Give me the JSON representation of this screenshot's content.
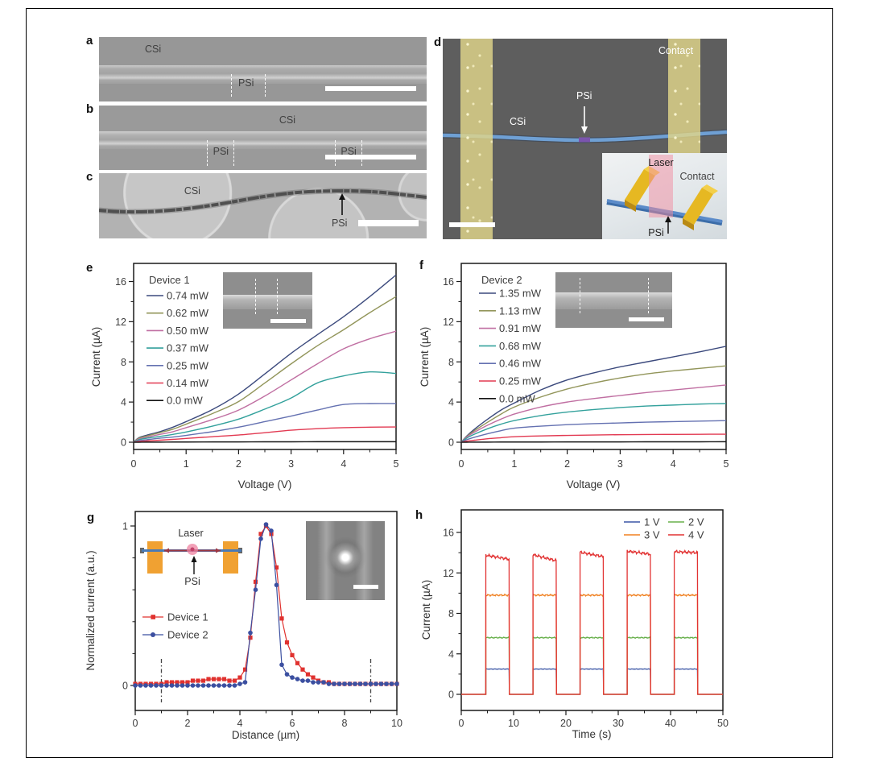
{
  "figure": {
    "panels": {
      "a": {
        "label": "a",
        "csi": "CSi",
        "psi": "PSi"
      },
      "b": {
        "label": "b",
        "csi": "CSi",
        "psi": "PSi"
      },
      "c": {
        "label": "c",
        "csi": "CSi",
        "psi": "PSi"
      },
      "d": {
        "label": "d",
        "contact": "Contact",
        "csi": "CSi",
        "psi": "PSi",
        "inset": {
          "laser": "Laser",
          "contact": "Contact",
          "psi": "PSi"
        }
      }
    },
    "colors": {
      "contact_gold": "#ded387",
      "nanowire_blue": "#6fa0d4",
      "psi_purple": "#7b54ae",
      "laser_pink": "#f294a5"
    }
  },
  "chart_data": [
    {
      "id": "e",
      "panel": "e",
      "type": "line",
      "legend_title": "Device 1",
      "xlabel": "Voltage (V)",
      "ylabel": "Current (µA)",
      "xlim": [
        0,
        5
      ],
      "ylim": [
        0,
        16
      ],
      "xticks": [
        0,
        1,
        2,
        3,
        4,
        5
      ],
      "yticks": [
        0,
        4,
        8,
        12,
        16
      ],
      "xminor": [
        0.5,
        1.5,
        2.5,
        3.5,
        4.5
      ],
      "yminor": [
        2,
        6,
        10,
        14
      ],
      "x": [
        0,
        0.1,
        0.25,
        0.5,
        0.75,
        1,
        1.5,
        2,
        2.5,
        3,
        3.5,
        4,
        4.5,
        5
      ],
      "series": [
        {
          "name": "0.74 mW",
          "color": "#3c4a7d",
          "values": [
            0,
            0.45,
            0.7,
            1.05,
            1.5,
            2.05,
            3.25,
            4.8,
            6.8,
            8.85,
            10.7,
            12.5,
            14.5,
            16.65
          ]
        },
        {
          "name": "0.62 mW",
          "color": "#92955a",
          "values": [
            0,
            0.4,
            0.62,
            0.95,
            1.3,
            1.8,
            2.85,
            4.05,
            5.9,
            7.8,
            9.6,
            11.2,
            12.9,
            14.5
          ]
        },
        {
          "name": "0.50 mW",
          "color": "#c06fa2",
          "values": [
            0,
            0.32,
            0.5,
            0.78,
            1.05,
            1.45,
            2.25,
            3.2,
            4.6,
            6.2,
            7.8,
            9.3,
            10.3,
            11.05
          ]
        },
        {
          "name": "0.37 mW",
          "color": "#33a19c",
          "values": [
            0,
            0.25,
            0.4,
            0.58,
            0.78,
            1.02,
            1.6,
            2.3,
            3.3,
            4.4,
            5.9,
            6.6,
            7.0,
            6.85
          ]
        },
        {
          "name": "0.25 mW",
          "color": "#6471b1",
          "values": [
            0,
            0.15,
            0.25,
            0.4,
            0.52,
            0.68,
            1.05,
            1.5,
            2.05,
            2.6,
            3.2,
            3.75,
            3.85,
            3.85
          ]
        },
        {
          "name": "0.14 mW",
          "color": "#e23a52",
          "values": [
            0,
            0.08,
            0.13,
            0.2,
            0.28,
            0.38,
            0.55,
            0.72,
            0.95,
            1.2,
            1.35,
            1.45,
            1.5,
            1.52
          ]
        },
        {
          "name": "0.0 mW",
          "color": "#141414",
          "values": [
            0,
            0,
            0.01,
            0.01,
            0.02,
            0.02,
            0.03,
            0.03,
            0.04,
            0.04,
            0.05,
            0.05,
            0.05,
            0.05
          ]
        }
      ]
    },
    {
      "id": "f",
      "panel": "f",
      "type": "line",
      "legend_title": "Device 2",
      "xlabel": "Voltage (V)",
      "ylabel": "Current (µA)",
      "xlim": [
        0,
        5
      ],
      "ylim": [
        0,
        16
      ],
      "xticks": [
        0,
        1,
        2,
        3,
        4,
        5
      ],
      "yticks": [
        0,
        4,
        8,
        12,
        16
      ],
      "xminor": [
        0.5,
        1.5,
        2.5,
        3.5,
        4.5
      ],
      "yminor": [
        2,
        6,
        10,
        14
      ],
      "x": [
        0,
        0.1,
        0.25,
        0.5,
        0.75,
        1,
        1.5,
        2,
        2.5,
        3,
        3.5,
        4,
        4.5,
        5
      ],
      "series": [
        {
          "name": "1.35 mW",
          "color": "#3c4a7d",
          "values": [
            0,
            0.6,
            1.3,
            2.3,
            3.2,
            3.9,
            5.2,
            6.2,
            6.9,
            7.5,
            8.0,
            8.5,
            9.0,
            9.55
          ]
        },
        {
          "name": "1.13 mW",
          "color": "#92955a",
          "values": [
            0,
            0.55,
            1.15,
            2.0,
            2.8,
            3.5,
            4.5,
            5.3,
            5.9,
            6.4,
            6.8,
            7.1,
            7.35,
            7.6
          ]
        },
        {
          "name": "0.91 mW",
          "color": "#c06fa2",
          "values": [
            0,
            0.5,
            1.0,
            1.7,
            2.3,
            2.8,
            3.5,
            4.0,
            4.35,
            4.65,
            4.95,
            5.2,
            5.45,
            5.7
          ]
        },
        {
          "name": "0.68 mW",
          "color": "#33a19c",
          "values": [
            0,
            0.4,
            0.8,
            1.35,
            1.8,
            2.15,
            2.65,
            3.0,
            3.25,
            3.45,
            3.6,
            3.7,
            3.8,
            3.85
          ]
        },
        {
          "name": "0.46 mW",
          "color": "#6471b1",
          "values": [
            0,
            0.25,
            0.5,
            0.85,
            1.15,
            1.4,
            1.6,
            1.75,
            1.85,
            1.92,
            2.0,
            2.05,
            2.1,
            2.15
          ]
        },
        {
          "name": "0.25 mW",
          "color": "#e23a52",
          "values": [
            0,
            0.1,
            0.2,
            0.35,
            0.45,
            0.55,
            0.63,
            0.68,
            0.72,
            0.75,
            0.77,
            0.78,
            0.79,
            0.8
          ]
        },
        {
          "name": "0.0 mW",
          "color": "#141414",
          "values": [
            0,
            0,
            0.01,
            0.01,
            0.02,
            0.02,
            0.02,
            0.03,
            0.03,
            0.03,
            0.04,
            0.04,
            0.04,
            0.05
          ]
        }
      ]
    },
    {
      "id": "g",
      "panel": "g",
      "type": "scatter-line",
      "xlabel": "Distance (µm)",
      "ylabel": "Normalized current (a.u.)",
      "xlim": [
        0,
        10
      ],
      "ylim": [
        0,
        1
      ],
      "xticks": [
        0,
        2,
        4,
        6,
        8,
        10
      ],
      "yticks": [
        0,
        1
      ],
      "xminor": [
        1,
        3,
        5,
        7,
        9
      ],
      "yminor": [
        0.2,
        0.4,
        0.6,
        0.8
      ],
      "marker_lines_x": [
        1,
        9
      ],
      "inset_labels": {
        "laser": "Laser",
        "psi": "PSi"
      },
      "x": [
        0,
        0.2,
        0.4,
        0.6,
        0.8,
        1,
        1.2,
        1.4,
        1.6,
        1.8,
        2,
        2.2,
        2.4,
        2.6,
        2.8,
        3,
        3.2,
        3.4,
        3.6,
        3.8,
        4,
        4.2,
        4.4,
        4.6,
        4.8,
        5,
        5.2,
        5.4,
        5.6,
        5.8,
        6,
        6.2,
        6.4,
        6.6,
        6.8,
        7,
        7.2,
        7.4,
        7.6,
        7.8,
        8,
        8.2,
        8.4,
        8.6,
        8.8,
        9,
        9.2,
        9.4,
        9.6,
        9.8,
        10
      ],
      "series": [
        {
          "name": "Device 1",
          "color": "#e0312e",
          "marker": "square",
          "values": [
            0.01,
            0.01,
            0.01,
            0.01,
            0.01,
            0.01,
            0.02,
            0.02,
            0.02,
            0.02,
            0.02,
            0.03,
            0.03,
            0.03,
            0.04,
            0.04,
            0.04,
            0.04,
            0.03,
            0.03,
            0.05,
            0.1,
            0.3,
            0.65,
            0.95,
            1,
            0.95,
            0.74,
            0.42,
            0.27,
            0.19,
            0.14,
            0.1,
            0.07,
            0.05,
            0.03,
            0.02,
            0.02,
            0.01,
            0.01,
            0.01,
            0.01,
            0.01,
            0.01,
            0.01,
            0.01,
            0.01,
            0.01,
            0.01,
            0.01,
            0.01
          ]
        },
        {
          "name": "Device 2",
          "color": "#3b4fa0",
          "marker": "circle",
          "values": [
            0,
            0,
            0,
            0,
            0,
            0,
            0,
            0,
            0,
            0,
            0,
            0,
            0,
            0,
            0,
            0,
            0,
            0,
            0,
            0,
            0.01,
            0.02,
            0.33,
            0.6,
            0.92,
            1.01,
            0.97,
            0.63,
            0.13,
            0.07,
            0.05,
            0.04,
            0.03,
            0.03,
            0.02,
            0.02,
            0.02,
            0.01,
            0.01,
            0.01,
            0.01,
            0.01,
            0.01,
            0.01,
            0.01,
            0.01,
            0.01,
            0.01,
            0.01,
            0.01,
            0.01
          ]
        }
      ]
    },
    {
      "id": "h",
      "panel": "h",
      "type": "pulse",
      "xlabel": "Time (s)",
      "ylabel": "Current (µA)",
      "xlim": [
        0,
        50
      ],
      "ylim": [
        0,
        16
      ],
      "xticks": [
        0,
        10,
        20,
        30,
        40,
        50
      ],
      "yticks": [
        0,
        4,
        8,
        12,
        16
      ],
      "xminor": [
        5,
        15,
        25,
        35,
        45
      ],
      "yminor": [
        2,
        6,
        10,
        14
      ],
      "on_intervals": [
        [
          4.7,
          9.2
        ],
        [
          13.7,
          18.2
        ],
        [
          22.7,
          27.2
        ],
        [
          31.7,
          36.2
        ],
        [
          40.7,
          45.2
        ]
      ],
      "series": [
        {
          "name": "1 V",
          "color": "#3a55a5",
          "level": 2.5,
          "noise": 0.025
        },
        {
          "name": "2 V",
          "color": "#68b04c",
          "level": 5.6,
          "noise": 0.06
        },
        {
          "name": "3 V",
          "color": "#f08020",
          "level": 9.8,
          "noise": 0.09
        },
        {
          "name": "4 V",
          "color": "#e23333",
          "levels": [
            13.75,
            13.8,
            14.05,
            14.15,
            14.1
          ],
          "drift": [
            -0.4,
            -0.6,
            -0.45,
            -0.3,
            -0.1
          ],
          "noise": 0.16
        }
      ]
    }
  ]
}
